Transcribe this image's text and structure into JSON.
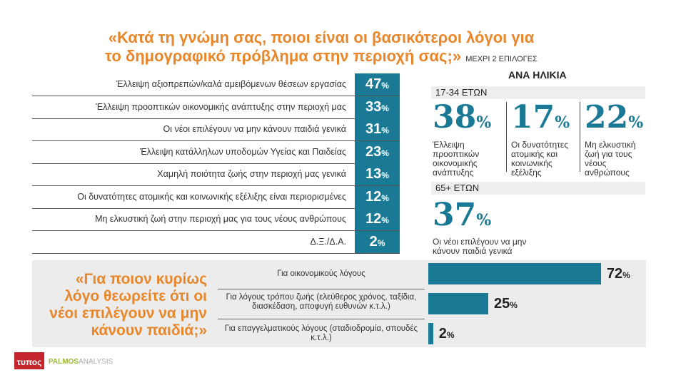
{
  "title": {
    "line1": "«Κατά τη γνώμη σας, ποιοι είναι οι βασικότεροι λόγοι για",
    "line2": "το δημογραφικό πρόβλημα στην περιοχή σας;»",
    "note": "ΜΕΧΡΙ 2 ΕΠΙΛΟΓΕΣ"
  },
  "chart_data": [
    {
      "type": "bar",
      "title": "«Κατά τη γνώμη σας, ποιοι είναι οι βασικότεροι λόγοι για το δημογραφικό πρόβλημα στην περιοχή σας;»",
      "categories": [
        "Έλλειψη αξιοπρεπών/καλά αμειβόμενων θέσεων εργασίας",
        "Έλλειψη προοπτικών οικονομικής ανάπτυξης στην περιοχή μας",
        "Οι νέοι επιλέγουν να μην κάνουν παιδιά γενικά",
        "Έλλειψη κατάλληλων υποδομών Υγείας και Παιδείας",
        "Χαμηλή ποιότητα ζωής στην περιοχή μας γενικά",
        "Οι δυνατότητες ατομικής και κοινωνικής εξέλιξης είναι περιορισμένες",
        "Μη ελκυστική ζωή στην περιοχή μας για τους νέους ανθρώπους",
        "Δ.Ξ./Δ.Α."
      ],
      "values": [
        47,
        33,
        31,
        23,
        13,
        12,
        12,
        2
      ],
      "unit": "%"
    },
    {
      "type": "bar",
      "title": "«Για ποιον κυρίως λόγο θεωρείτε ότι οι νέοι επιλέγουν να μην κάνουν παιδιά;»",
      "categories": [
        "Για οικονομικούς λόγους",
        "Για λόγους τρόπου ζωής (ελεύθερος χρόνος, ταξίδια, διασκέδαση, αποφυγή ευθυνών κ.τ.λ.)",
        "Για επαγγελματικούς λόγους (σταδιοδρομία, σπουδές κ.τ.λ.)"
      ],
      "values": [
        72,
        25,
        2
      ],
      "unit": "%",
      "xlim": [
        0,
        100
      ]
    }
  ],
  "pct": "%",
  "age": {
    "heading": "ΑΝΑ ΗΛΙΚΙΑ",
    "groups": [
      {
        "label": "17-34 ΕΤΩΝ",
        "items": [
          {
            "value": 38,
            "text": "Έλλειψη προοπτικών οικονομικής ανάπτυξης"
          },
          {
            "value": 17,
            "text": "Οι δυνατότητες ατομικής και κοινωνικής εξέλιξης"
          },
          {
            "value": 22,
            "text": "Μη ελκυστική ζωή για τους νέους ανθρώπους"
          }
        ]
      },
      {
        "label": "65+ ΕΤΩΝ",
        "items": [
          {
            "value": 37,
            "text": "Οι νέοι επιλέγουν να μην κάνουν παιδιά γενικά"
          }
        ]
      }
    ]
  },
  "logos": {
    "tipos": "ΤΥΠΟΣ",
    "palmos": "PALMOS ANALYSIS"
  },
  "colors": {
    "accent": "#e8862a",
    "teal": "#1a7a96"
  }
}
